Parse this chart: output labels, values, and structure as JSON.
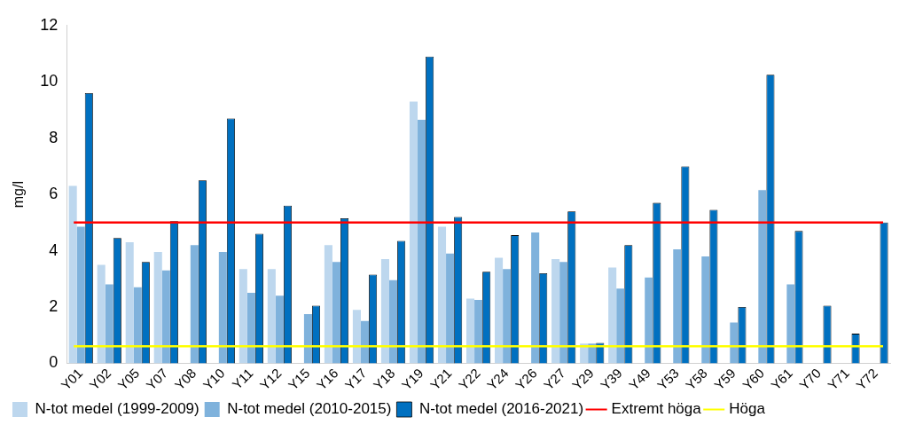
{
  "chart_data": {
    "type": "bar",
    "ylabel": "mg/l",
    "categories": [
      "Y01",
      "Y02",
      "Y05",
      "Y07",
      "Y08",
      "Y10",
      "Y11",
      "Y12",
      "Y15",
      "Y16",
      "Y17",
      "Y18",
      "Y19",
      "Y21",
      "Y22",
      "Y24",
      "Y26",
      "Y27",
      "Y29",
      "Y39",
      "Y49",
      "Y53",
      "Y58",
      "Y59",
      "Y60",
      "Y61",
      "Y70",
      "Y71",
      "Y72"
    ],
    "series": [
      {
        "name": "N-tot medel (1999-2009)",
        "color": "#bdd7ee",
        "values": [
          6.3,
          3.5,
          4.3,
          3.95,
          null,
          null,
          3.35,
          3.35,
          null,
          4.2,
          1.9,
          3.7,
          9.3,
          4.85,
          2.3,
          3.75,
          null,
          3.7,
          0.7,
          3.4,
          null,
          null,
          null,
          null,
          null,
          null,
          null,
          null,
          null
        ]
      },
      {
        "name": "N-tot medel (2010-2015)",
        "color": "#7fb2dc",
        "values": [
          4.85,
          2.8,
          2.7,
          3.3,
          4.2,
          3.95,
          2.5,
          2.4,
          1.75,
          3.6,
          1.5,
          2.95,
          8.65,
          3.9,
          2.25,
          3.35,
          4.65,
          3.6,
          0.7,
          2.65,
          3.05,
          4.05,
          3.8,
          1.45,
          6.15,
          2.8,
          null,
          null,
          null
        ]
      },
      {
        "name": "N-tot medel (2016-2021)",
        "color": "#0070c0",
        "values": [
          9.6,
          4.45,
          3.6,
          5.05,
          6.5,
          8.7,
          4.6,
          5.6,
          2.05,
          5.15,
          3.15,
          4.35,
          10.9,
          5.2,
          3.25,
          4.55,
          3.2,
          5.4,
          0.72,
          4.2,
          5.7,
          7.0,
          5.45,
          2.0,
          10.25,
          4.7,
          2.05,
          1.05,
          5.0
        ]
      }
    ],
    "ylim": [
      0,
      12
    ],
    "yticks": [
      0,
      2,
      4,
      6,
      8,
      10,
      12
    ],
    "grid": false,
    "legend": "bottom",
    "ref_lines": [
      {
        "axis": "y",
        "value": 5,
        "label": "Extremt höga",
        "color": "#ff0000"
      },
      {
        "axis": "y",
        "value": 0.6,
        "label": "Höga",
        "color": "#ffff00"
      }
    ]
  }
}
